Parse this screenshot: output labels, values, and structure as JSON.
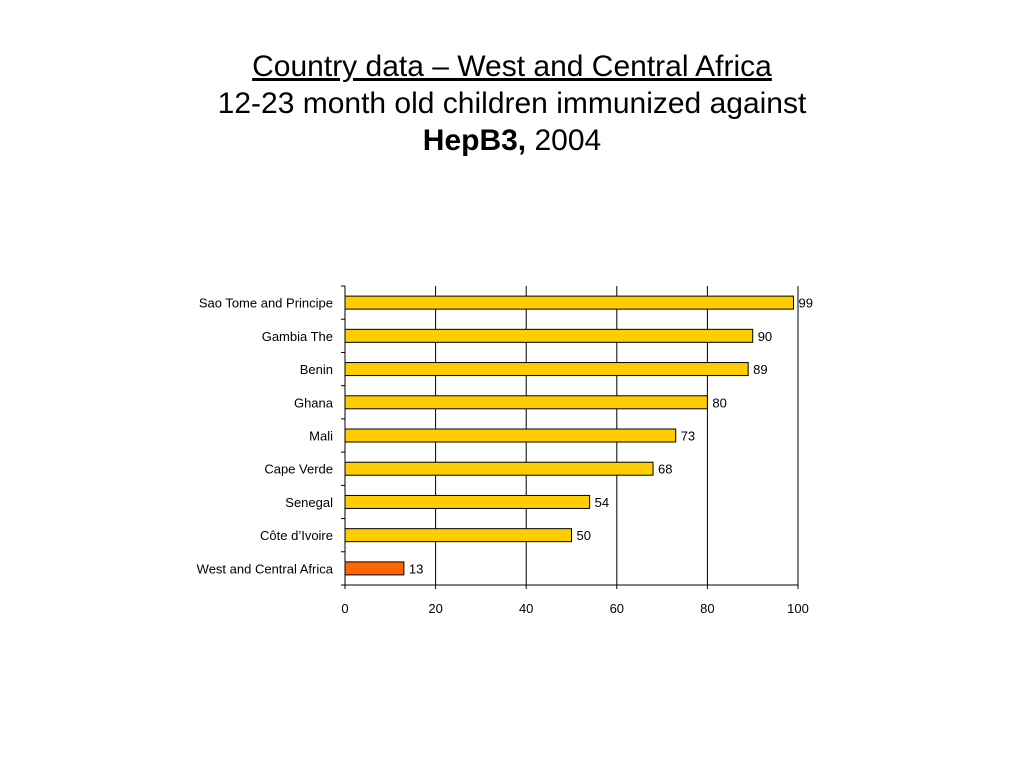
{
  "title": {
    "line1": "Country data – West and Central Africa",
    "line2": "12-23 month old children immunized against",
    "line3_bold": "HepB3,",
    "line3_rest": " 2004"
  },
  "chart_data": {
    "type": "bar",
    "orientation": "horizontal",
    "categories": [
      "Sao Tome and Principe",
      "Gambia The",
      "Benin",
      "Ghana",
      "Mali",
      "Cape Verde",
      "Senegal",
      "Côte d’Ivoire",
      "West and Central Africa"
    ],
    "values": [
      99,
      90,
      89,
      80,
      73,
      68,
      54,
      50,
      13
    ],
    "bar_colors": [
      "#FFCC00",
      "#FFCC00",
      "#FFCC00",
      "#FFCC00",
      "#FFCC00",
      "#FFCC00",
      "#FFCC00",
      "#FFCC00",
      "#FF6600"
    ],
    "xlim": [
      0,
      100
    ],
    "xticks": [
      0,
      20,
      40,
      60,
      80,
      100
    ],
    "grid": "vertical",
    "legend": "none",
    "data_labels": true
  }
}
